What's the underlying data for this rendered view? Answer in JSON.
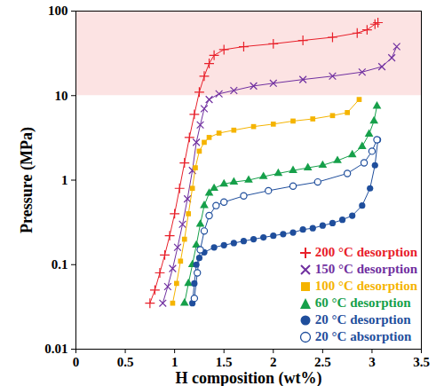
{
  "chart_data": {
    "type": "scatter",
    "x_label": "H composition (wt%)",
    "y_label": "Pressure (MPa)",
    "xlim": [
      0,
      3.5
    ],
    "xticks": [
      0,
      0.5,
      1,
      1.5,
      2,
      2.5,
      3,
      3.5
    ],
    "ylim": [
      0.01,
      100
    ],
    "yticks": [
      0.01,
      0.1,
      1,
      10,
      100
    ],
    "log": "y",
    "grid": false,
    "legend": "bottom-right",
    "highlight": {
      "y": [
        10,
        100
      ],
      "color": "#fce3e3"
    },
    "series": [
      {
        "name": "200 °C desorption",
        "color": "#e8202a",
        "marker": "plus",
        "line_style": "solid",
        "x": [
          0.75,
          0.8,
          0.85,
          0.9,
          0.95,
          1.0,
          1.05,
          1.1,
          1.15,
          1.2,
          1.25,
          1.3,
          1.35,
          1.4,
          1.5,
          1.7,
          2.0,
          2.3,
          2.6,
          2.85,
          2.95,
          3.03,
          3.06
        ],
        "values": [
          0.035,
          0.05,
          0.08,
          0.13,
          0.22,
          0.4,
          0.8,
          1.6,
          3.2,
          6,
          11,
          17,
          24,
          30,
          35,
          38,
          41,
          45,
          49,
          55,
          60,
          70,
          73
        ]
      },
      {
        "name": "150 °C desorption",
        "color": "#7030a0",
        "marker": "times",
        "line_style": "solid",
        "x": [
          0.88,
          0.93,
          0.98,
          1.03,
          1.08,
          1.13,
          1.18,
          1.22,
          1.26,
          1.3,
          1.35,
          1.45,
          1.6,
          1.8,
          2.0,
          2.3,
          2.6,
          2.9,
          3.1,
          3.2,
          3.25
        ],
        "values": [
          0.035,
          0.055,
          0.09,
          0.16,
          0.3,
          0.6,
          1.3,
          2.8,
          4.5,
          7,
          9,
          10.5,
          11.5,
          13,
          14,
          15.5,
          17,
          19,
          22,
          28,
          38
        ]
      },
      {
        "name": "100 °C desorption",
        "color": "#f5b400",
        "marker": "square",
        "line_style": "solid",
        "x": [
          0.98,
          1.02,
          1.06,
          1.1,
          1.14,
          1.18,
          1.21,
          1.25,
          1.3,
          1.35,
          1.45,
          1.6,
          1.8,
          2.0,
          2.2,
          2.4,
          2.6,
          2.75,
          2.87
        ],
        "values": [
          0.035,
          0.06,
          0.11,
          0.2,
          0.4,
          0.8,
          1.4,
          2.2,
          2.8,
          3.2,
          3.6,
          3.9,
          4.3,
          4.6,
          5.0,
          5.3,
          5.8,
          6.3,
          9
        ]
      },
      {
        "name": "60 °C desorption",
        "color": "#16a04a",
        "marker": "triangle",
        "line_style": "solid",
        "x": [
          1.1,
          1.14,
          1.18,
          1.22,
          1.26,
          1.3,
          1.35,
          1.4,
          1.5,
          1.6,
          1.75,
          1.9,
          2.05,
          2.2,
          2.35,
          2.5,
          2.65,
          2.8,
          2.9,
          2.97,
          3.02,
          3.05
        ],
        "values": [
          0.035,
          0.06,
          0.1,
          0.17,
          0.3,
          0.5,
          0.7,
          0.8,
          0.9,
          0.95,
          1.0,
          1.1,
          1.2,
          1.3,
          1.4,
          1.5,
          1.7,
          2.0,
          2.5,
          3.5,
          5,
          7.5
        ]
      },
      {
        "name": "20 °C desorption",
        "color": "#1f4e9c",
        "marker": "circle",
        "line_style": "solid",
        "x": [
          1.18,
          1.2,
          1.22,
          1.25,
          1.3,
          1.4,
          1.5,
          1.6,
          1.7,
          1.8,
          1.9,
          2.0,
          2.1,
          2.2,
          2.3,
          2.4,
          2.5,
          2.6,
          2.7,
          2.8,
          2.9,
          2.98,
          3.03,
          3.06
        ],
        "values": [
          0.035,
          0.06,
          0.1,
          0.12,
          0.14,
          0.16,
          0.17,
          0.18,
          0.19,
          0.2,
          0.21,
          0.22,
          0.23,
          0.24,
          0.26,
          0.27,
          0.29,
          0.31,
          0.34,
          0.38,
          0.5,
          0.8,
          1.5,
          3
        ]
      },
      {
        "name": "20 °C absorption",
        "color": "#1f4e9c",
        "marker": "circle-open",
        "line_style": "solid",
        "x": [
          1.2,
          1.23,
          1.26,
          1.3,
          1.35,
          1.42,
          1.5,
          1.7,
          1.95,
          2.2,
          2.45,
          2.75,
          2.92,
          3.0,
          3.05
        ],
        "values": [
          0.04,
          0.08,
          0.15,
          0.25,
          0.38,
          0.5,
          0.55,
          0.65,
          0.75,
          0.85,
          0.95,
          1.2,
          1.6,
          2.2,
          3
        ]
      }
    ]
  }
}
